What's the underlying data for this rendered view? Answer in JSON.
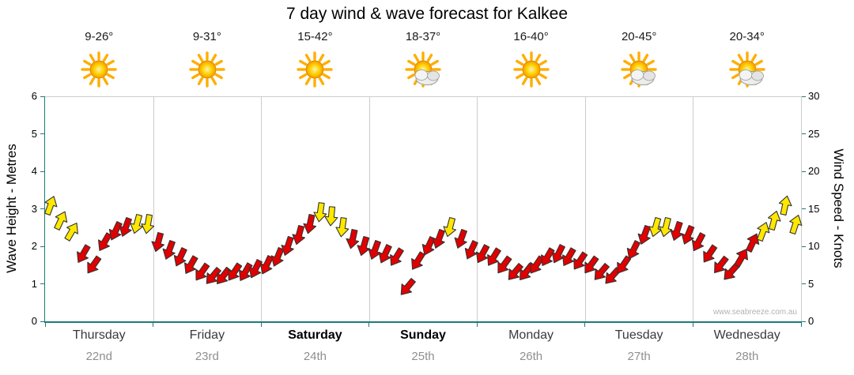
{
  "title": "7 day wind & wave forecast for Kalkee",
  "watermark": "www.seabreeze.com.au",
  "left_axis": {
    "label": "Wave Height - Metres",
    "min": 0,
    "max": 6,
    "ticks": [
      0,
      1,
      2,
      3,
      4,
      5,
      6
    ]
  },
  "right_axis": {
    "label": "Wind Speed - Knots",
    "min": 0,
    "max": 30,
    "ticks": [
      0,
      5,
      10,
      15,
      20,
      25,
      30
    ]
  },
  "days": [
    {
      "name": "Thursday",
      "date": "22nd",
      "temp": "9-26°",
      "icon": "sunny",
      "weekend": false
    },
    {
      "name": "Friday",
      "date": "23rd",
      "temp": "9-31°",
      "icon": "sunny",
      "weekend": false
    },
    {
      "name": "Saturday",
      "date": "24th",
      "temp": "15-42°",
      "icon": "sunny",
      "weekend": true
    },
    {
      "name": "Sunday",
      "date": "25th",
      "temp": "18-37°",
      "icon": "partly-cloudy",
      "weekend": true
    },
    {
      "name": "Monday",
      "date": "26th",
      "temp": "16-40°",
      "icon": "sunny",
      "weekend": false
    },
    {
      "name": "Tuesday",
      "date": "27th",
      "temp": "20-45°",
      "icon": "partly-cloudy",
      "weekend": false
    },
    {
      "name": "Wednesday",
      "date": "28th",
      "temp": "20-34°",
      "icon": "partly-cloudy",
      "weekend": false
    }
  ],
  "chart_data": {
    "type": "wind-arrow-series",
    "title": "7 day wind & wave forecast for Kalkee",
    "categories": [
      "Thursday 22nd",
      "Friday 23rd",
      "Saturday 24th",
      "Sunday 25th",
      "Monday 26th",
      "Tuesday 27th",
      "Wednesday 28th"
    ],
    "ylabel_left": "Wave Height - Metres",
    "ylabel_right": "Wind Speed - Knots",
    "ylim_left": [
      0,
      6
    ],
    "ylim_right": [
      0,
      30
    ],
    "grid": "vertical day separators only",
    "points_per_day": 10,
    "point_format": "[wind_speed_knots, color r=red y=yellow, arrow_rotation_deg]",
    "points": [
      [
        15.5,
        "y",
        20
      ],
      [
        13.5,
        "y",
        25
      ],
      [
        12,
        "y",
        30
      ],
      [
        9,
        "r",
        210
      ],
      [
        7.5,
        "r",
        215
      ],
      [
        10.5,
        "r",
        210
      ],
      [
        12,
        "r",
        205
      ],
      [
        12.5,
        "r",
        200
      ],
      [
        13,
        "y",
        195
      ],
      [
        13,
        "y",
        190
      ],
      [
        10.5,
        "r",
        195
      ],
      [
        9.5,
        "r",
        200
      ],
      [
        8.5,
        "r",
        205
      ],
      [
        7.5,
        "r",
        210
      ],
      [
        6.5,
        "r",
        215
      ],
      [
        6,
        "r",
        220
      ],
      [
        6,
        "r",
        218
      ],
      [
        6.5,
        "r",
        214
      ],
      [
        6.5,
        "r",
        210
      ],
      [
        7,
        "r",
        206
      ],
      [
        7.5,
        "r",
        205
      ],
      [
        8.5,
        "r",
        202
      ],
      [
        10,
        "r",
        198
      ],
      [
        11.5,
        "r",
        195
      ],
      [
        13,
        "r",
        192
      ],
      [
        14.5,
        "y",
        188
      ],
      [
        14,
        "y",
        185
      ],
      [
        12.5,
        "y",
        188
      ],
      [
        11,
        "r",
        192
      ],
      [
        10,
        "r",
        196
      ],
      [
        9.5,
        "r",
        200
      ],
      [
        9,
        "r",
        205
      ],
      [
        8.5,
        "r",
        212
      ],
      [
        4.5,
        "r",
        220
      ],
      [
        8,
        "r",
        212
      ],
      [
        10,
        "r",
        205
      ],
      [
        11,
        "r",
        200
      ],
      [
        12.5,
        "y",
        195
      ],
      [
        11,
        "r",
        200
      ],
      [
        9.5,
        "r",
        205
      ],
      [
        9,
        "r",
        208
      ],
      [
        8.5,
        "r",
        212
      ],
      [
        7.5,
        "r",
        216
      ],
      [
        6.5,
        "r",
        220
      ],
      [
        6.5,
        "r",
        218
      ],
      [
        7.5,
        "r",
        214
      ],
      [
        8.5,
        "r",
        210
      ],
      [
        9,
        "r",
        206
      ],
      [
        8.5,
        "r",
        210
      ],
      [
        8,
        "r",
        214
      ],
      [
        7.5,
        "r",
        216
      ],
      [
        6.5,
        "r",
        220
      ],
      [
        6,
        "r",
        222
      ],
      [
        7.5,
        "r",
        214
      ],
      [
        9.5,
        "r",
        206
      ],
      [
        11.5,
        "r",
        200
      ],
      [
        12.5,
        "y",
        196
      ],
      [
        12.5,
        "y",
        194
      ],
      [
        12,
        "r",
        198
      ],
      [
        11.5,
        "r",
        202
      ],
      [
        10.5,
        "r",
        208
      ],
      [
        9,
        "r",
        214
      ],
      [
        7.5,
        "r",
        218
      ],
      [
        6.5,
        "r",
        222
      ],
      [
        8.5,
        "r",
        30
      ],
      [
        10.5,
        "r",
        25
      ],
      [
        12,
        "y",
        20
      ],
      [
        13.5,
        "y",
        15
      ],
      [
        15.5,
        "y",
        12
      ],
      [
        13,
        "y",
        18
      ]
    ],
    "colors": {
      "red": "#E10000",
      "yellow": "#FFE800",
      "outline": "#333333",
      "axis": "#1f7a7a",
      "grid": "#cccccc"
    }
  }
}
